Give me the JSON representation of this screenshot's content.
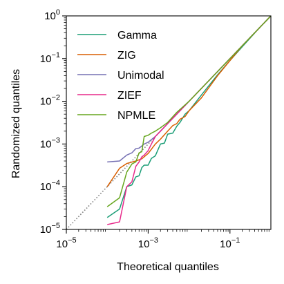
{
  "chart_data": {
    "type": "line",
    "title": "",
    "xlabel": "Theoretical quantiles",
    "ylabel": "Randomized quantiles",
    "xscale": "log",
    "yscale": "log",
    "xlim": [
      1e-05,
      1
    ],
    "ylim": [
      1e-05,
      1
    ],
    "grid": false,
    "legend_position": "upper-left",
    "x_ticks": [
      {
        "value": 1e-05,
        "base": "10",
        "exp": "−5"
      },
      {
        "value": 0.001,
        "base": "10",
        "exp": "−3"
      },
      {
        "value": 0.1,
        "base": "10",
        "exp": "−1"
      }
    ],
    "y_ticks": [
      {
        "value": 1e-05,
        "base": "10",
        "exp": "−5"
      },
      {
        "value": 0.0001,
        "base": "10",
        "exp": "−4"
      },
      {
        "value": 0.001,
        "base": "10",
        "exp": "−3"
      },
      {
        "value": 0.01,
        "base": "10",
        "exp": "−2"
      },
      {
        "value": 0.1,
        "base": "10",
        "exp": "−1"
      },
      {
        "value": 1,
        "base": "10",
        "exp": "0"
      }
    ],
    "reference_line": {
      "style": "dotted",
      "color": "#808080",
      "points": [
        [
          1e-05,
          1e-05
        ],
        [
          1,
          1
        ]
      ]
    },
    "series": [
      {
        "name": "Gamma",
        "color": "#1b9e77",
        "points": [
          [
            0.0001,
            1.9e-05
          ],
          [
            0.0002,
            3e-05
          ],
          [
            0.0003,
            0.0001
          ],
          [
            0.0004,
            0.00011
          ],
          [
            0.0005,
            0.00017
          ],
          [
            0.0006,
            0.00018
          ],
          [
            0.0007,
            0.00028
          ],
          [
            0.0008,
            0.00032
          ],
          [
            0.001,
            0.00032
          ],
          [
            0.0012,
            0.00046
          ],
          [
            0.0015,
            0.00053
          ],
          [
            0.002,
            0.001
          ],
          [
            0.0025,
            0.00105
          ],
          [
            0.003,
            0.0017
          ],
          [
            0.004,
            0.0018
          ],
          [
            0.005,
            0.0026
          ],
          [
            0.006,
            0.0032
          ],
          [
            0.008,
            0.005
          ],
          [
            0.01,
            0.006
          ],
          [
            0.02,
            0.014
          ],
          [
            0.05,
            0.042
          ],
          [
            0.1,
            0.09
          ],
          [
            0.2,
            0.19
          ],
          [
            0.5,
            0.5
          ],
          [
            1,
            1
          ]
        ]
      },
      {
        "name": "ZIG",
        "color": "#d95f02",
        "points": [
          [
            0.0001,
            0.0001
          ],
          [
            0.0002,
            0.00027
          ],
          [
            0.0003,
            0.00035
          ],
          [
            0.0005,
            0.0004
          ],
          [
            0.0007,
            0.00045
          ],
          [
            0.001,
            0.0006
          ],
          [
            0.0015,
            0.001
          ],
          [
            0.002,
            0.0013
          ],
          [
            0.003,
            0.002
          ],
          [
            0.004,
            0.0027
          ],
          [
            0.005,
            0.003
          ],
          [
            0.006,
            0.0038
          ],
          [
            0.008,
            0.0044
          ],
          [
            0.01,
            0.006
          ],
          [
            0.02,
            0.012
          ],
          [
            0.05,
            0.04
          ],
          [
            0.1,
            0.09
          ],
          [
            0.2,
            0.2
          ],
          [
            0.5,
            0.5
          ],
          [
            1,
            1
          ]
        ]
      },
      {
        "name": "Unimodal",
        "color": "#7570b3",
        "points": [
          [
            0.0001,
            0.00038
          ],
          [
            0.0002,
            0.0004
          ],
          [
            0.0003,
            0.00055
          ],
          [
            0.0004,
            0.00062
          ],
          [
            0.0005,
            0.00078
          ],
          [
            0.0006,
            0.0008
          ],
          [
            0.0007,
            0.0009
          ],
          [
            0.0008,
            0.001
          ],
          [
            0.001,
            0.0011
          ],
          [
            0.0015,
            0.0015
          ],
          [
            0.002,
            0.002
          ],
          [
            0.003,
            0.003
          ],
          [
            0.005,
            0.005
          ],
          [
            0.01,
            0.01
          ],
          [
            0.03,
            0.03
          ],
          [
            0.1,
            0.1
          ],
          [
            0.3,
            0.3
          ],
          [
            1,
            1
          ]
        ]
      },
      {
        "name": "ZIEF",
        "color": "#e7298a",
        "points": [
          [
            0.0001,
            1.3e-05
          ],
          [
            0.0002,
            1.5e-05
          ],
          [
            0.0003,
            0.0001
          ],
          [
            0.0004,
            0.00013
          ],
          [
            0.0005,
            0.0003
          ],
          [
            0.0006,
            0.00038
          ],
          [
            0.0007,
            0.0005
          ],
          [
            0.0008,
            0.00055
          ],
          [
            0.001,
            0.0007
          ],
          [
            0.0012,
            0.001
          ],
          [
            0.0015,
            0.0015
          ],
          [
            0.002,
            0.002
          ],
          [
            0.003,
            0.003
          ],
          [
            0.005,
            0.005
          ],
          [
            0.01,
            0.01
          ],
          [
            0.03,
            0.03
          ],
          [
            0.1,
            0.1
          ],
          [
            0.3,
            0.3
          ],
          [
            1,
            1
          ]
        ]
      },
      {
        "name": "NPMLE",
        "color": "#66a61e",
        "points": [
          [
            0.0001,
            3.4e-05
          ],
          [
            0.0002,
            5.5e-05
          ],
          [
            0.0003,
            0.00022
          ],
          [
            0.0004,
            0.00034
          ],
          [
            0.0005,
            0.00038
          ],
          [
            0.0006,
            0.00062
          ],
          [
            0.0007,
            0.00066
          ],
          [
            0.0008,
            0.0015
          ],
          [
            0.001,
            0.0016
          ],
          [
            0.0012,
            0.0018
          ],
          [
            0.0015,
            0.002
          ],
          [
            0.002,
            0.0024
          ],
          [
            0.003,
            0.0032
          ],
          [
            0.005,
            0.0055
          ],
          [
            0.01,
            0.01
          ],
          [
            0.03,
            0.03
          ],
          [
            0.1,
            0.1
          ],
          [
            0.3,
            0.3
          ],
          [
            1,
            1
          ]
        ]
      }
    ]
  }
}
